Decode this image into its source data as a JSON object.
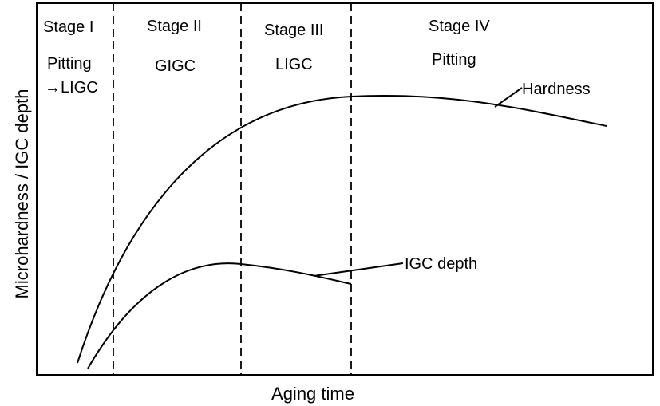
{
  "diagram": {
    "type": "schematic-curve-plot",
    "x_axis_label": "Aging time",
    "y_axis_label": "Microhardness / IGC depth",
    "stages": [
      {
        "name": "Stage I",
        "mechanism_line1": "Pitting",
        "mechanism_line2": "→LIGC"
      },
      {
        "name": "Stage II",
        "mechanism_line1": "GIGC"
      },
      {
        "name": "Stage III",
        "mechanism_line1": "LIGC"
      },
      {
        "name": "Stage IV",
        "mechanism_line1": "Pitting"
      }
    ],
    "curves": [
      {
        "name": "Hardness"
      },
      {
        "name": "IGC depth"
      }
    ],
    "colors": {
      "line": "#000000",
      "background": "#ffffff"
    }
  }
}
